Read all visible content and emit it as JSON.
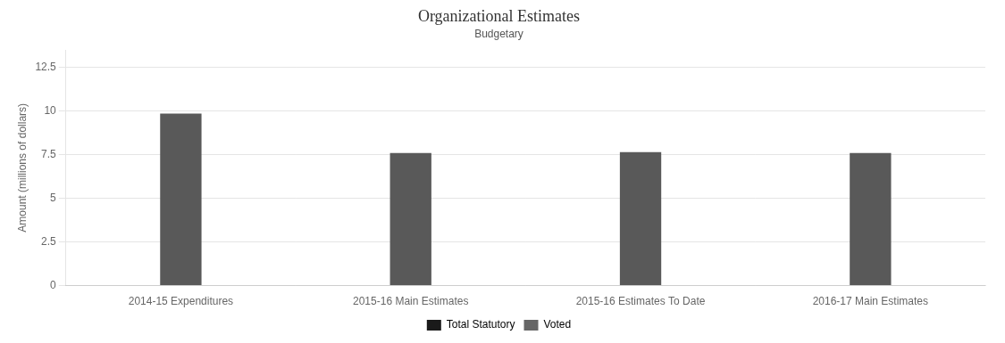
{
  "chart_data": {
    "type": "bar",
    "title": "Organizational Estimates",
    "subtitle": "Budgetary",
    "categories": [
      "2014-15 Expenditures",
      "2015-16 Main Estimates",
      "2015-16 Estimates To Date",
      "2016-17 Main Estimates"
    ],
    "values": [
      9.85,
      7.6,
      7.65,
      7.6
    ],
    "color": "#595959",
    "ylabel": "Amount (millions of dollars)",
    "ylim": [
      0,
      13.5
    ],
    "yticks": [
      0,
      2.5,
      5,
      7.5,
      10,
      12.5
    ],
    "grid": true,
    "legend": "bottom",
    "legend_entries": [
      {
        "name": "Total Statutory",
        "color": "#1a1a1a"
      },
      {
        "name": "Voted",
        "color": "#666666"
      }
    ]
  }
}
